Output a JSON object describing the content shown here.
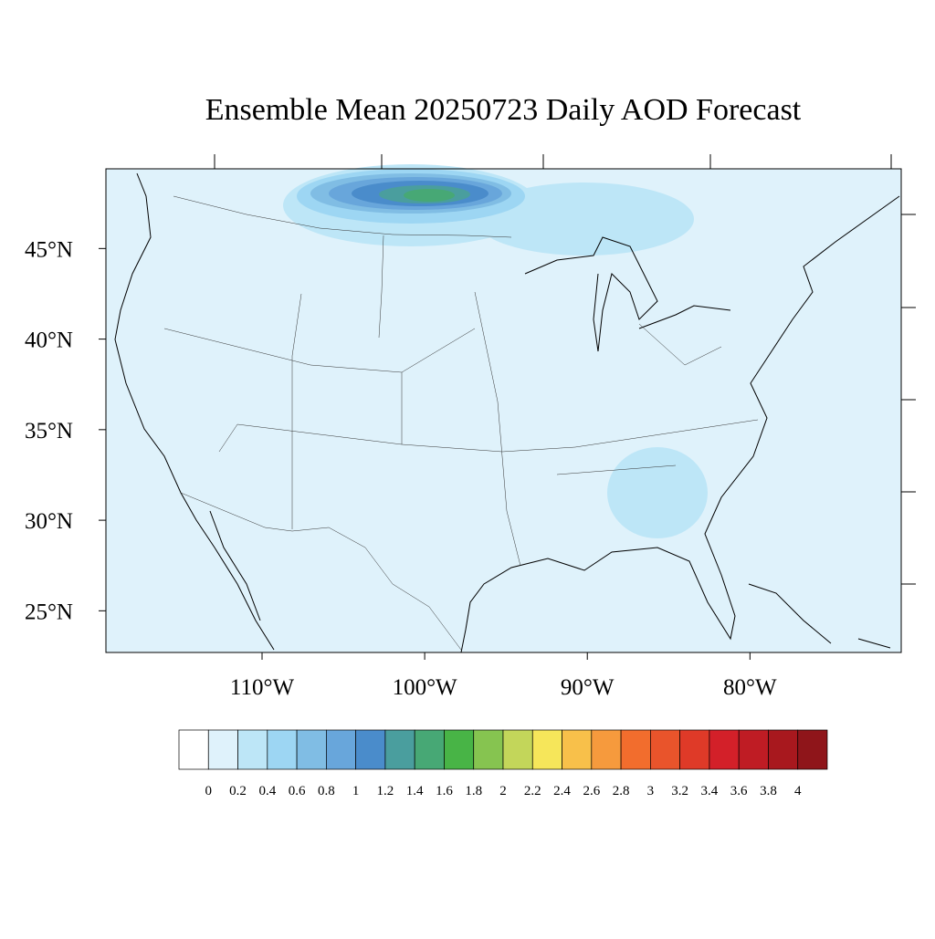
{
  "map": {
    "title": "Ensemble Mean 20250723 Daily AOD Forecast",
    "xlim": [
      -119.6,
      -70.7
    ],
    "ylim": [
      22.7,
      49.4
    ],
    "lat_ticks": [
      {
        "value": 45,
        "label": "45°N"
      },
      {
        "value": 40,
        "label": "40°N"
      },
      {
        "value": 35,
        "label": "35°N"
      },
      {
        "value": 30,
        "label": "30°N"
      },
      {
        "value": 25,
        "label": "25°N"
      }
    ],
    "lon_ticks": [
      {
        "value": -110,
        "label": "110°W"
      },
      {
        "value": -100,
        "label": "100°W"
      },
      {
        "value": -90,
        "label": "90°W"
      },
      {
        "value": -80,
        "label": "80°W"
      }
    ],
    "colorbar": {
      "levels": [
        0,
        0.2,
        0.4,
        0.6,
        0.8,
        1,
        1.2,
        1.4,
        1.6,
        1.8,
        2,
        2.2,
        2.4,
        2.6,
        2.8,
        3,
        3.2,
        3.4,
        3.6,
        3.8,
        4
      ],
      "colors": [
        "#ffffff",
        "#dff2fb",
        "#bde6f7",
        "#9dd6f3",
        "#80bde4",
        "#68a6db",
        "#4a8ccb",
        "#4a9e9e",
        "#47a875",
        "#48b446",
        "#86c450",
        "#c3d65a",
        "#f6e65a",
        "#f8c04a",
        "#f69a3d",
        "#f26d2d",
        "#e9542b",
        "#df3a28",
        "#d32029",
        "#bf1c24",
        "#a8181e",
        "#8f151a"
      ]
    }
  }
}
